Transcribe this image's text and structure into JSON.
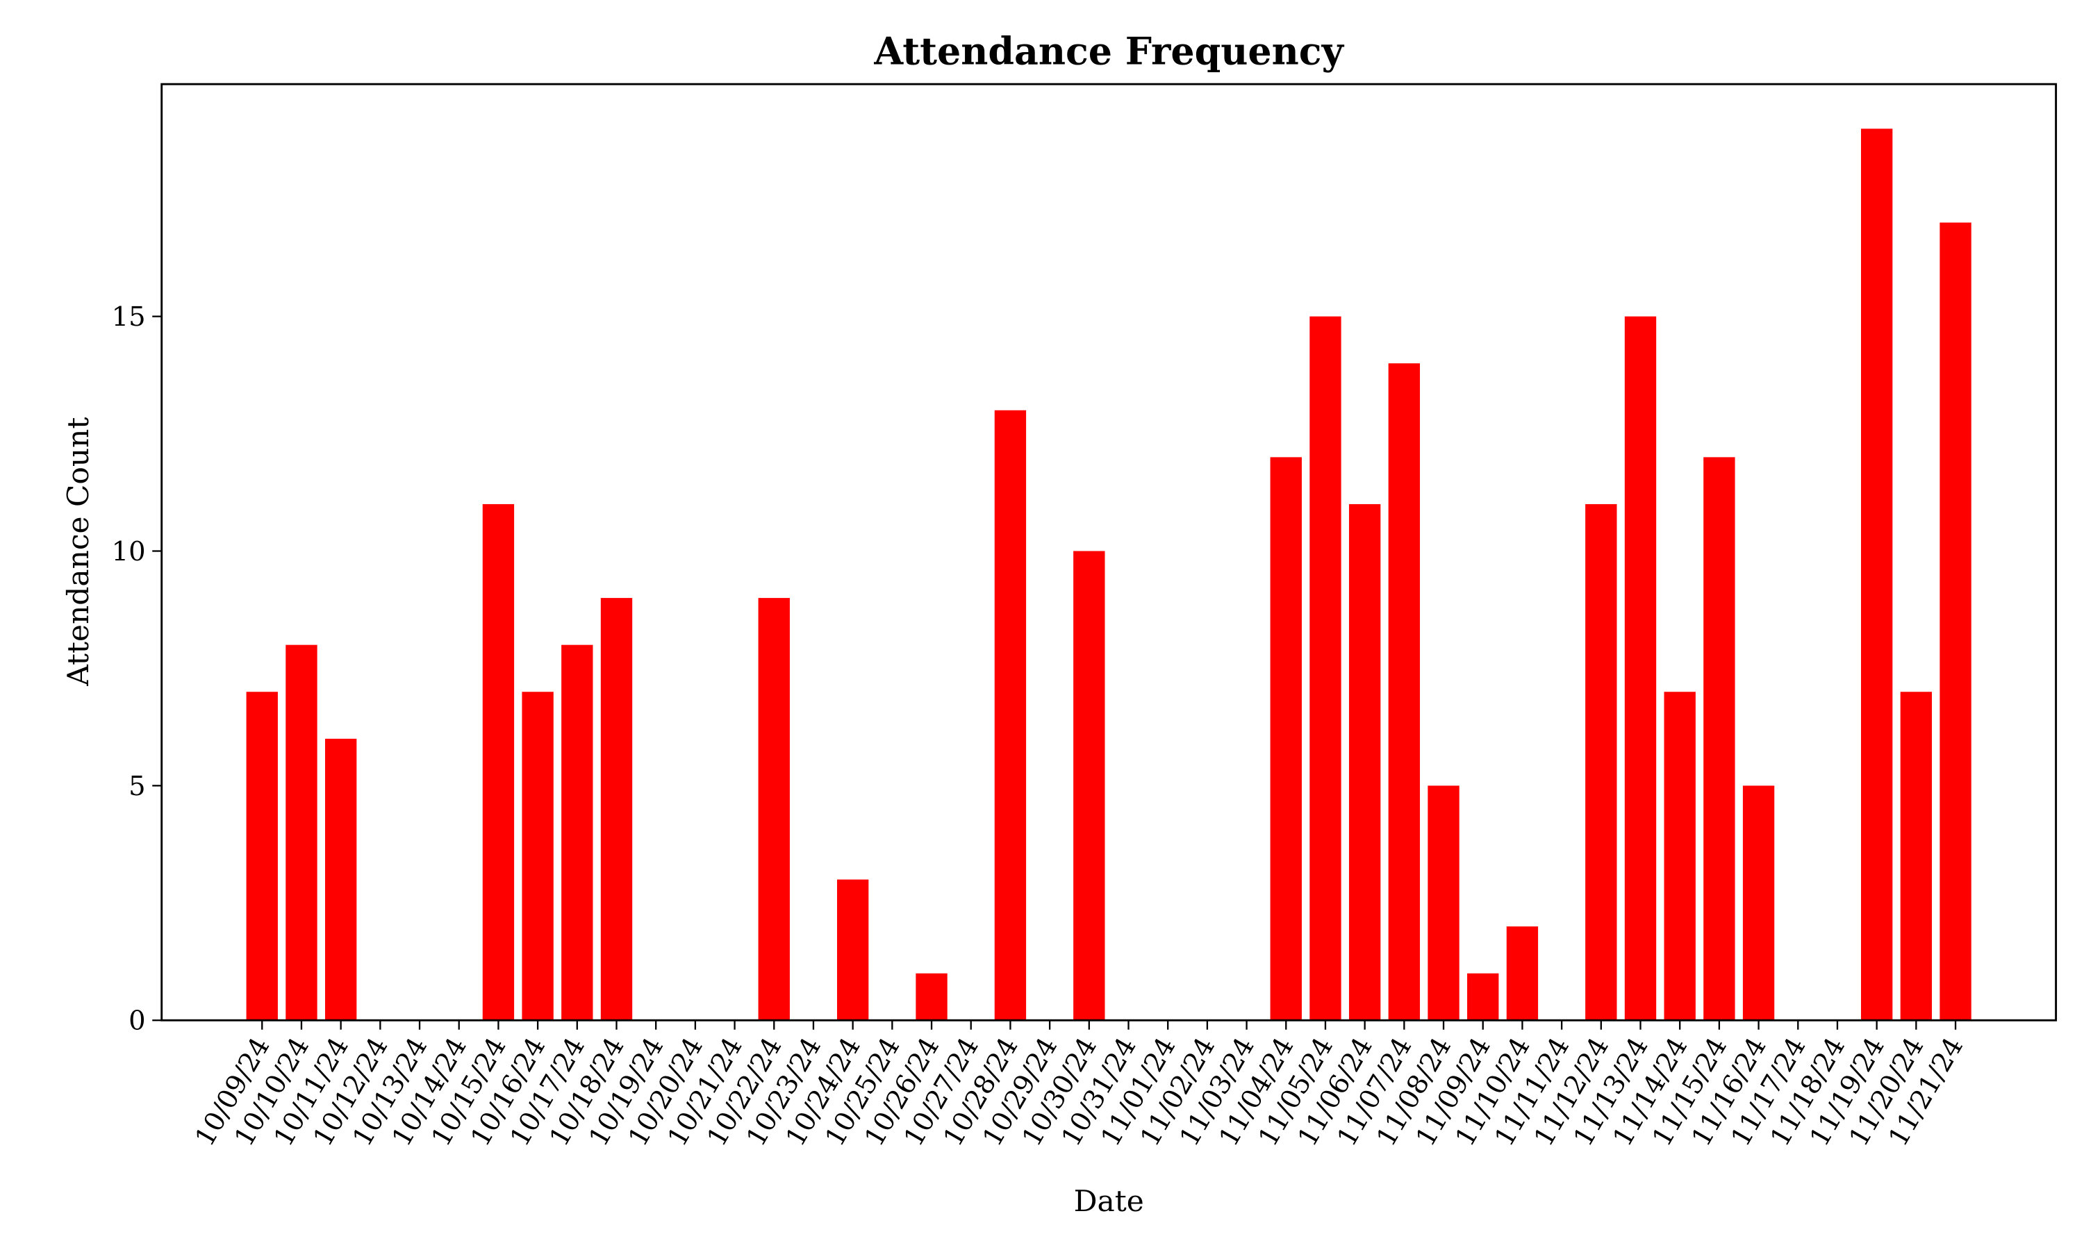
{
  "chart_data": {
    "type": "bar",
    "title": "Attendance Frequency",
    "x_label": "Date",
    "y_label": "Attendance Count",
    "categories": [
      "10/09/24",
      "10/10/24",
      "10/11/24",
      "10/12/24",
      "10/13/24",
      "10/14/24",
      "10/15/24",
      "10/16/24",
      "10/17/24",
      "10/18/24",
      "10/19/24",
      "10/20/24",
      "10/21/24",
      "10/22/24",
      "10/23/24",
      "10/24/24",
      "10/25/24",
      "10/26/24",
      "10/27/24",
      "10/28/24",
      "10/29/24",
      "10/30/24",
      "10/31/24",
      "11/01/24",
      "11/02/24",
      "11/03/24",
      "11/04/24",
      "11/05/24",
      "11/06/24",
      "11/07/24",
      "11/08/24",
      "11/09/24",
      "11/10/24",
      "11/11/24",
      "11/12/24",
      "11/13/24",
      "11/14/24",
      "11/15/24",
      "11/16/24",
      "11/17/24",
      "11/18/24",
      "11/19/24",
      "11/20/24",
      "11/21/24"
    ],
    "values": [
      7,
      8,
      6,
      0,
      0,
      0,
      11,
      7,
      8,
      9,
      0,
      0,
      0,
      9,
      0,
      3,
      0,
      1,
      0,
      13,
      0,
      10,
      0,
      0,
      0,
      0,
      12,
      15,
      11,
      14,
      5,
      1,
      2,
      0,
      11,
      15,
      7,
      12,
      5,
      0,
      0,
      19,
      7,
      17
    ],
    "color": "#ff0000",
    "ylim": [
      0,
      19.95
    ],
    "yticks": [
      0,
      5,
      10,
      15
    ],
    "grid": false
  }
}
